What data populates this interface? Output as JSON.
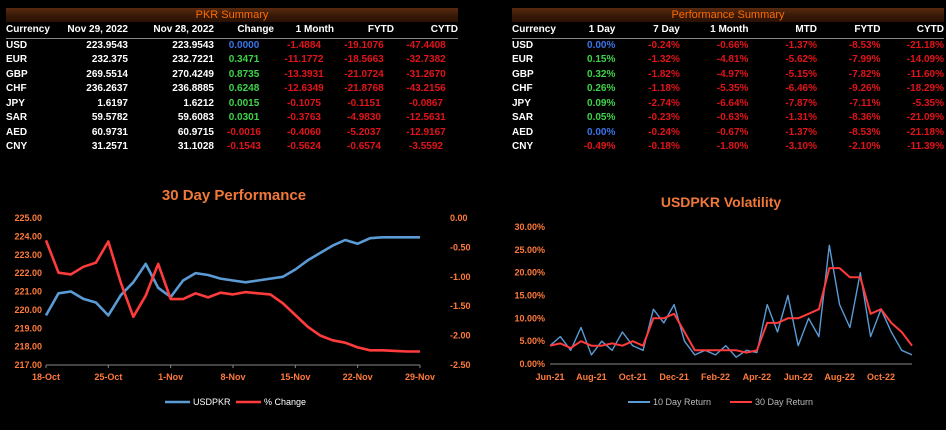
{
  "pkr_summary": {
    "title": "PKR Summary",
    "headers": [
      "Currency",
      "Nov 29, 2022",
      "Nov 28, 2022",
      "Change",
      "1 Month",
      "FYTD",
      "CYTD"
    ],
    "rows": [
      {
        "ccy": "USD",
        "d1": "223.9543",
        "d2": "223.9543",
        "chg": "0.0000",
        "m1": "-1.4884",
        "fytd": "-19.1076",
        "cytd": "-47.4408"
      },
      {
        "ccy": "EUR",
        "d1": "232.375",
        "d2": "232.7221",
        "chg": "0.3471",
        "m1": "-11.1772",
        "fytd": "-18.5663",
        "cytd": "-32.7382"
      },
      {
        "ccy": "GBP",
        "d1": "269.5514",
        "d2": "270.4249",
        "chg": "0.8735",
        "m1": "-13.3931",
        "fytd": "-21.0724",
        "cytd": "-31.2670"
      },
      {
        "ccy": "CHF",
        "d1": "236.2637",
        "d2": "236.8885",
        "chg": "0.6248",
        "m1": "-12.6349",
        "fytd": "-21.8768",
        "cytd": "-43.2156"
      },
      {
        "ccy": "JPY",
        "d1": "1.6197",
        "d2": "1.6212",
        "chg": "0.0015",
        "m1": "-0.1075",
        "fytd": "-0.1151",
        "cytd": "-0.0867"
      },
      {
        "ccy": "SAR",
        "d1": "59.5782",
        "d2": "59.6083",
        "chg": "0.0301",
        "m1": "-0.3763",
        "fytd": "-4.9830",
        "cytd": "-12.5631"
      },
      {
        "ccy": "AED",
        "d1": "60.9731",
        "d2": "60.9715",
        "chg": "-0.0016",
        "m1": "-0.4060",
        "fytd": "-5.2037",
        "cytd": "-12.9167"
      },
      {
        "ccy": "CNY",
        "d1": "31.2571",
        "d2": "31.1028",
        "chg": "-0.1543",
        "m1": "-0.5624",
        "fytd": "-0.6574",
        "cytd": "-3.5592"
      }
    ]
  },
  "performance_summary": {
    "title": "Performance Summary",
    "headers": [
      "Currency",
      "1 Day",
      "7 Day",
      "1 Month",
      "MTD",
      "FYTD",
      "CYTD"
    ],
    "rows": [
      {
        "ccy": "USD",
        "d1": "0.00%",
        "d7": "-0.24%",
        "m1": "-0.66%",
        "mtd": "-1.37%",
        "fytd": "-8.53%",
        "cytd": "-21.18%"
      },
      {
        "ccy": "EUR",
        "d1": "0.15%",
        "d7": "-1.32%",
        "m1": "-4.81%",
        "mtd": "-5.62%",
        "fytd": "-7.99%",
        "cytd": "-14.09%"
      },
      {
        "ccy": "GBP",
        "d1": "0.32%",
        "d7": "-1.82%",
        "m1": "-4.97%",
        "mtd": "-5.15%",
        "fytd": "-7.82%",
        "cytd": "-11.60%"
      },
      {
        "ccy": "CHF",
        "d1": "0.26%",
        "d7": "-1.18%",
        "m1": "-5.35%",
        "mtd": "-6.46%",
        "fytd": "-9.26%",
        "cytd": "-18.29%"
      },
      {
        "ccy": "JPY",
        "d1": "0.09%",
        "d7": "-2.74%",
        "m1": "-6.64%",
        "mtd": "-7.87%",
        "fytd": "-7.11%",
        "cytd": "-5.35%"
      },
      {
        "ccy": "SAR",
        "d1": "0.05%",
        "d7": "-0.23%",
        "m1": "-0.63%",
        "mtd": "-1.31%",
        "fytd": "-8.36%",
        "cytd": "-21.09%"
      },
      {
        "ccy": "AED",
        "d1": "0.00%",
        "d7": "-0.24%",
        "m1": "-0.67%",
        "mtd": "-1.37%",
        "fytd": "-8.53%",
        "cytd": "-21.18%"
      },
      {
        "ccy": "CNY",
        "d1": "-0.49%",
        "d7": "-0.18%",
        "m1": "-1.80%",
        "mtd": "-3.10%",
        "fytd": "-2.10%",
        "cytd": "-11.39%"
      }
    ]
  },
  "colors": {
    "positive": "#3fd44a",
    "negative": "#e2141a",
    "zero": "#3a74e8",
    "title": "#f07838",
    "blue": "#5b9bd5",
    "red": "#ff3b3b"
  },
  "chart_data": [
    {
      "type": "line",
      "title": "30 Day Performance",
      "x": [
        "18-Oct",
        "19-Oct",
        "20-Oct",
        "21-Oct",
        "24-Oct",
        "25-Oct",
        "26-Oct",
        "27-Oct",
        "28-Oct",
        "31-Oct",
        "1-Nov",
        "2-Nov",
        "3-Nov",
        "4-Nov",
        "7-Nov",
        "8-Nov",
        "9-Nov",
        "10-Nov",
        "11-Nov",
        "14-Nov",
        "15-Nov",
        "16-Nov",
        "17-Nov",
        "18-Nov",
        "21-Nov",
        "22-Nov",
        "23-Nov",
        "24-Nov",
        "25-Nov",
        "28-Nov",
        "29-Nov"
      ],
      "xticks": [
        "18-Oct",
        "25-Oct",
        "1-Nov",
        "8-Nov",
        "15-Nov",
        "22-Nov",
        "29-Nov"
      ],
      "yleft_lim": [
        217.0,
        225.0
      ],
      "yleft_ticks": [
        "217.00",
        "218.00",
        "219.00",
        "220.00",
        "221.00",
        "222.00",
        "223.00",
        "224.00",
        "225.00"
      ],
      "yright_lim": [
        -2.5,
        0.0
      ],
      "yright_ticks": [
        "0.00",
        "-0.50",
        "-1.00",
        "-1.50",
        "-2.00",
        "-2.50"
      ],
      "series": [
        {
          "name": "USDPKR",
          "axis": "left",
          "color": "#5b9bd5",
          "values": [
            219.7,
            220.9,
            221.0,
            220.6,
            220.4,
            219.7,
            220.8,
            221.5,
            222.5,
            221.2,
            220.7,
            221.6,
            222.0,
            221.9,
            221.7,
            221.6,
            221.5,
            221.6,
            221.7,
            221.8,
            222.2,
            222.7,
            223.1,
            223.5,
            223.8,
            223.6,
            223.9,
            223.95,
            223.95,
            223.95,
            223.95
          ]
        },
        {
          "name": "% Change",
          "axis": "right",
          "color": "#ff3b3b",
          "values": [
            -0.38,
            -0.93,
            -0.96,
            -0.83,
            -0.76,
            -0.4,
            -1.1,
            -1.68,
            -1.32,
            -0.78,
            -1.38,
            -1.38,
            -1.28,
            -1.35,
            -1.27,
            -1.3,
            -1.26,
            -1.28,
            -1.3,
            -1.45,
            -1.65,
            -1.85,
            -2.0,
            -2.08,
            -2.12,
            -2.2,
            -2.25,
            -2.25,
            -2.26,
            -2.27,
            -2.27
          ]
        }
      ]
    },
    {
      "type": "line",
      "title": "USDPKR Volatility",
      "xticks": [
        "Jun-21",
        "Aug-21",
        "Oct-21",
        "Dec-21",
        "Feb-22",
        "Apr-22",
        "Jun-22",
        "Aug-22",
        "Oct-22"
      ],
      "ylim": [
        0,
        30
      ],
      "yticks": [
        "0.00%",
        "5.00%",
        "10.00%",
        "15.00%",
        "20.00%",
        "25.00%",
        "30.00%"
      ],
      "x_month_index": [
        0,
        0.5,
        1,
        1.5,
        2,
        2.5,
        3,
        3.5,
        4,
        4.5,
        5,
        5.5,
        6,
        6.5,
        7,
        7.5,
        8,
        8.5,
        9,
        9.5,
        10,
        10.5,
        11,
        11.5,
        12,
        12.5,
        13,
        13.5,
        14,
        14.5,
        15,
        15.5,
        16,
        16.5,
        17,
        17.5
      ],
      "series": [
        {
          "name": "10 Day Return",
          "color": "#5b9bd5",
          "values": [
            4,
            6,
            3,
            8,
            2,
            5,
            3,
            7,
            4,
            3,
            12,
            9,
            13,
            5,
            2,
            3,
            2,
            4,
            1.5,
            3,
            2.5,
            13,
            7,
            15,
            4,
            10,
            6,
            26,
            13,
            8,
            20,
            6,
            12,
            7,
            3,
            2
          ]
        },
        {
          "name": "30 Day Return",
          "color": "#ff3b3b",
          "values": [
            4,
            4.5,
            3.5,
            5,
            4,
            4,
            4.5,
            4,
            5,
            4,
            10,
            10,
            11,
            7,
            3,
            3,
            3,
            3,
            3,
            2.5,
            3,
            9,
            9,
            10,
            10,
            11,
            12,
            21,
            21,
            19,
            19,
            11,
            12,
            9,
            7,
            4
          ]
        }
      ]
    }
  ]
}
